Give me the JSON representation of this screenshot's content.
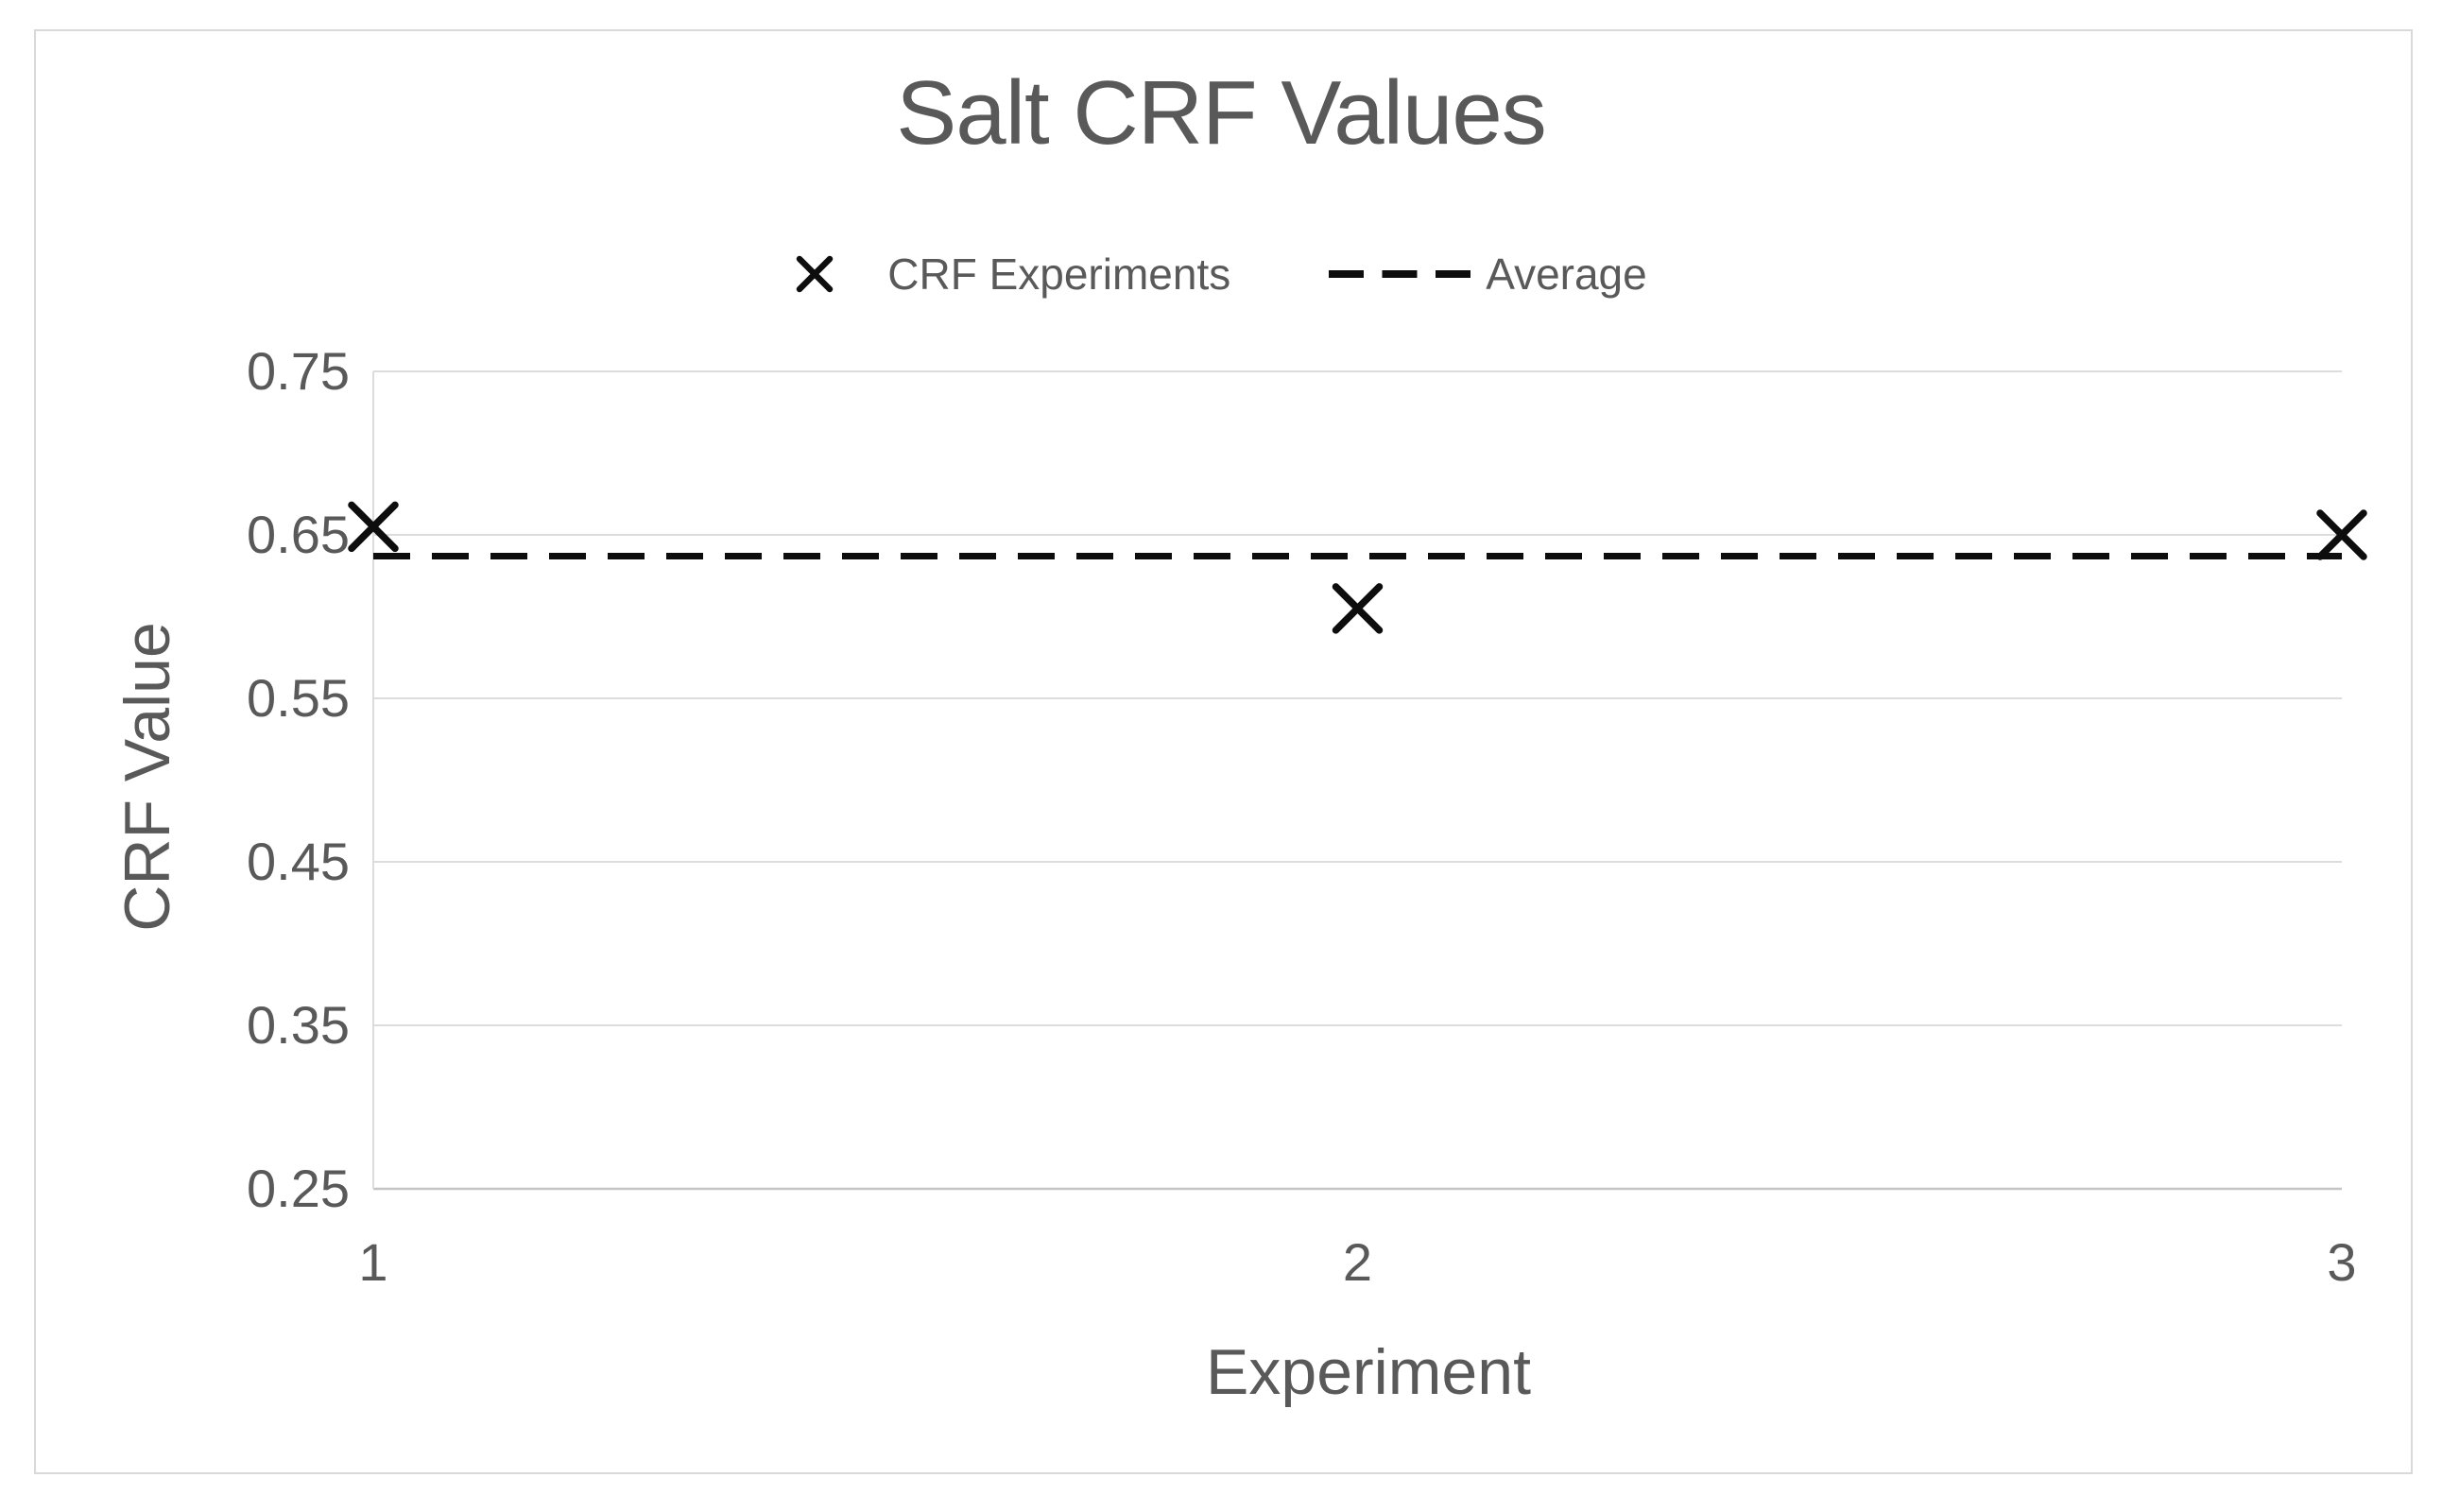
{
  "chart_data": {
    "type": "scatter",
    "title": "Salt CRF Values",
    "xlabel": "Experiment",
    "ylabel": "CRF Value",
    "x_tick_labels": [
      "1",
      "2",
      "3"
    ],
    "y_tick_labels": [
      "0.25",
      "0.35",
      "0.45",
      "0.55",
      "0.65",
      "0.75"
    ],
    "xlim": [
      1,
      3
    ],
    "ylim": [
      0.25,
      0.75
    ],
    "grid": "horizontal",
    "legend_position": "top-center",
    "series": [
      {
        "name": "CRF Experiments",
        "kind": "scatter",
        "marker": "x",
        "color": "#0d0d0d",
        "points": [
          {
            "x": 1,
            "y": 0.655
          },
          {
            "x": 2,
            "y": 0.605
          },
          {
            "x": 3,
            "y": 0.65
          }
        ]
      },
      {
        "name": "Average",
        "kind": "hline",
        "style": "dashed",
        "color": "#0d0d0d",
        "value": 0.637
      }
    ],
    "colors": {
      "text": "#595959",
      "gridline": "#dcdcdc",
      "axis_line": "#c4c4c4"
    }
  }
}
